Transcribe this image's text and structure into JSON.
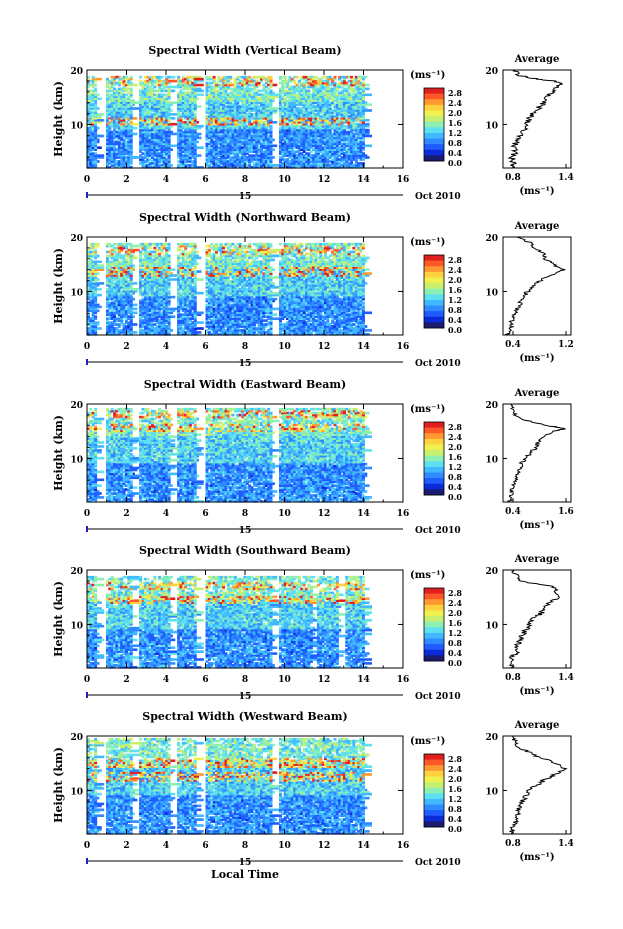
{
  "page": {
    "xlabel": "Local Time",
    "date_label": "Oct 2010",
    "day_label": "15"
  },
  "colorbar": {
    "unit_label": "(ms⁻¹)",
    "tick_labels": [
      "2.8",
      "2.4",
      "2.0",
      "1.6",
      "1.2",
      "0.8",
      "0.4",
      "0.0"
    ],
    "colors": [
      "#1a1a6e",
      "#0b2bd6",
      "#1e5cff",
      "#2f8bff",
      "#41b8ff",
      "#5fe0f0",
      "#8cf0b4",
      "#c8f070",
      "#f0f050",
      "#ffd040",
      "#ff9830",
      "#ff5828",
      "#e02020"
    ]
  },
  "chart_data": [
    {
      "type": "heatmap",
      "title": "Spectral Width (Vertical Beam)",
      "ylabel": "Height (km)",
      "x_ticks": [
        "0",
        "2",
        "4",
        "6",
        "8",
        "10",
        "12",
        "14",
        "16"
      ],
      "y_ticks": [
        "20",
        "10"
      ],
      "xlim": [
        0,
        16
      ],
      "ylim": [
        2,
        20
      ],
      "gaps": [
        [
          0.4,
          0.9
        ],
        [
          2.2,
          2.6
        ],
        [
          4.2,
          4.5
        ],
        [
          5.5,
          5.9
        ],
        [
          9.3,
          9.7
        ]
      ],
      "data_end": 14.0,
      "top_band": 18.6,
      "hot_heights": [
        17.8,
        10.5
      ],
      "average_profile": {
        "title": "Average",
        "xlabel": "(ms⁻¹)",
        "x_ticks": [
          "0.8",
          "1.4"
        ],
        "xlim": [
          0.6,
          1.4
        ],
        "heights": [
          2,
          3,
          4,
          5,
          6,
          7,
          8,
          9,
          10,
          11,
          12,
          13,
          14,
          15,
          16,
          17,
          17.5,
          18,
          18.5,
          19,
          20
        ],
        "values": [
          0.7,
          0.72,
          0.7,
          0.75,
          0.72,
          0.78,
          0.8,
          0.85,
          0.88,
          0.9,
          0.95,
          1.02,
          1.08,
          1.12,
          1.18,
          1.25,
          1.3,
          1.18,
          0.95,
          0.8,
          0.72
        ]
      }
    },
    {
      "type": "heatmap",
      "title": "Spectral Width (Northward Beam)",
      "ylabel": "Height (km)",
      "x_ticks": [
        "0",
        "2",
        "4",
        "6",
        "8",
        "10",
        "12",
        "14",
        "16"
      ],
      "y_ticks": [
        "20",
        "10"
      ],
      "xlim": [
        0,
        16
      ],
      "ylim": [
        2,
        20
      ],
      "gaps": [
        [
          0.4,
          0.9
        ],
        [
          2.2,
          2.6
        ],
        [
          4.2,
          4.5
        ],
        [
          5.5,
          5.9
        ],
        [
          9.3,
          9.7
        ]
      ],
      "data_end": 14.0,
      "top_band": 18.8,
      "hot_heights": [
        13.5,
        17.5
      ],
      "average_profile": {
        "title": "Average",
        "xlabel": "(ms⁻¹)",
        "x_ticks": [
          "0.4",
          "1.2"
        ],
        "xlim": [
          0.4,
          1.4
        ],
        "heights": [
          2,
          3,
          4,
          5,
          6,
          7,
          8,
          9,
          10,
          11,
          12,
          13,
          14,
          15,
          16,
          17,
          18,
          19,
          20
        ],
        "values": [
          0.48,
          0.5,
          0.52,
          0.55,
          0.58,
          0.62,
          0.66,
          0.7,
          0.76,
          0.84,
          0.95,
          1.1,
          1.28,
          1.15,
          1.02,
          1.0,
          0.85,
          0.8,
          0.6
        ]
      }
    },
    {
      "type": "heatmap",
      "title": "Spectral Width (Eastward Beam)",
      "ylabel": "Height (km)",
      "x_ticks": [
        "0",
        "2",
        "4",
        "6",
        "8",
        "10",
        "12",
        "14",
        "16"
      ],
      "y_ticks": [
        "20",
        "10"
      ],
      "xlim": [
        0,
        16
      ],
      "ylim": [
        2,
        20
      ],
      "gaps": [
        [
          0.4,
          0.9
        ],
        [
          2.2,
          2.6
        ],
        [
          4.2,
          4.5
        ],
        [
          5.5,
          5.9
        ],
        [
          9.3,
          9.7
        ]
      ],
      "data_end": 14.0,
      "top_band": 19.0,
      "hot_heights": [
        15.5,
        18.0
      ],
      "average_profile": {
        "title": "Average",
        "xlabel": "(ms⁻¹)",
        "x_ticks": [
          "0.4",
          "1.6"
        ],
        "xlim": [
          0.4,
          1.6
        ],
        "heights": [
          2,
          3,
          4,
          5,
          6,
          7,
          8,
          9,
          10,
          11,
          12,
          13,
          14,
          15,
          15.5,
          16,
          17,
          18,
          19,
          20
        ],
        "values": [
          0.52,
          0.55,
          0.56,
          0.58,
          0.62,
          0.66,
          0.7,
          0.72,
          0.8,
          0.88,
          0.98,
          1.02,
          1.1,
          1.3,
          1.5,
          1.2,
          0.8,
          0.6,
          0.58,
          0.55
        ]
      }
    },
    {
      "type": "heatmap",
      "title": "Spectral Width (Southward Beam)",
      "ylabel": "Height (km)",
      "x_ticks": [
        "0",
        "2",
        "4",
        "6",
        "8",
        "10",
        "12",
        "14",
        "16"
      ],
      "y_ticks": [
        "20",
        "10"
      ],
      "xlim": [
        0,
        16
      ],
      "ylim": [
        2,
        20
      ],
      "gaps": [
        [
          0.4,
          0.9
        ],
        [
          2.2,
          2.6
        ],
        [
          4.2,
          4.5
        ],
        [
          5.5,
          5.9
        ],
        [
          9.3,
          9.7
        ],
        [
          11.3,
          11.6
        ],
        [
          12.7,
          13.0
        ]
      ],
      "data_end": 14.0,
      "top_band": 18.8,
      "hot_heights": [
        14.5,
        17.0
      ],
      "average_profile": {
        "title": "Average",
        "xlabel": "(ms⁻¹)",
        "x_ticks": [
          "0.8",
          "1.4"
        ],
        "xlim": [
          0.6,
          1.5
        ],
        "heights": [
          2,
          3,
          4,
          5,
          6,
          7,
          8,
          9,
          10,
          11,
          12,
          13,
          14,
          15,
          16,
          17,
          18,
          19,
          20
        ],
        "values": [
          0.7,
          0.74,
          0.72,
          0.8,
          0.78,
          0.82,
          0.85,
          0.9,
          0.95,
          1.0,
          1.1,
          1.15,
          1.22,
          1.35,
          1.3,
          1.25,
          0.8,
          0.78,
          0.72
        ]
      }
    },
    {
      "type": "heatmap",
      "title": "Spectral Width (Westward Beam)",
      "ylabel": "Height (km)",
      "x_ticks": [
        "0",
        "2",
        "4",
        "6",
        "8",
        "10",
        "12",
        "14",
        "16"
      ],
      "y_ticks": [
        "20",
        "10"
      ],
      "xlim": [
        0,
        16
      ],
      "ylim": [
        2,
        20
      ],
      "gaps": [
        [
          0.4,
          0.9
        ],
        [
          2.2,
          2.6
        ],
        [
          4.2,
          4.5
        ],
        [
          5.5,
          5.9
        ],
        [
          9.3,
          9.7
        ]
      ],
      "data_end": 14.0,
      "top_band": 19.3,
      "hot_heights": [
        15.0,
        12.5
      ],
      "average_profile": {
        "title": "Average",
        "xlabel": "(ms⁻¹)",
        "x_ticks": [
          "0.8",
          "1.4"
        ],
        "xlim": [
          0.6,
          1.5
        ],
        "heights": [
          2,
          3,
          4,
          5,
          6,
          7,
          8,
          9,
          10,
          11,
          12,
          13,
          14,
          15,
          16,
          17,
          18,
          19,
          20
        ],
        "values": [
          0.68,
          0.72,
          0.75,
          0.78,
          0.8,
          0.82,
          0.85,
          0.9,
          0.95,
          1.05,
          1.15,
          1.3,
          1.4,
          1.3,
          1.1,
          0.95,
          0.8,
          0.75,
          0.72
        ]
      }
    }
  ]
}
